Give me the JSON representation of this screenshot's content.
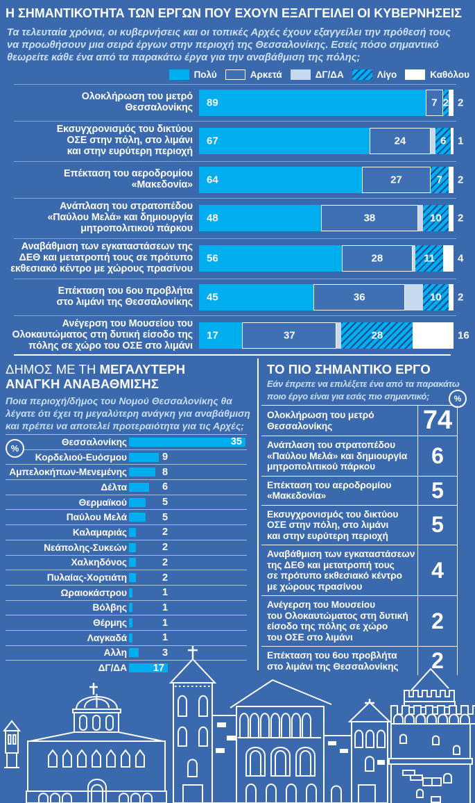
{
  "header": {
    "title": "Η ΣΗΜΑΝΤΙΚΟΤΗΤΑ ΤΩΝ ΕΡΓΩΝ ΠΟΥ ΕΧΟΥΝ ΕΞΑΓΓΕΙΛΕΙ ΟΙ ΚΥΒΕΡΝΗΣΕΙΣ",
    "intro": "Τα τελευταία χρόνια, οι κυβερνήσεις και οι τοπικές Αρχές έχουν εξαγγείλει την πρόθεσή τους\nνα προωθήσουν μια σειρά έργων στην περιοχή της Θεσσαλονίκης. Εσείς πόσο σημαντικό\nθεωρείτε κάθε ένα από τα παρακάτω έργα για την αναβάθμιση της πόλης;"
  },
  "legend": {
    "items": [
      {
        "label": "Πολύ",
        "swatch": "poly",
        "color": "#00aeef"
      },
      {
        "label": "Αρκετά",
        "swatch": "arketa",
        "color": "#4070b4"
      },
      {
        "label": "ΔΓ/ΔΑ",
        "swatch": "dgda",
        "color": "#c7d9ee"
      },
      {
        "label": "Λίγο",
        "swatch": "ligo",
        "color": "#00aeef hatched"
      },
      {
        "label": "Καθόλου",
        "swatch": "katholou",
        "color": "#ffffff"
      }
    ]
  },
  "colors": {
    "background": "#3a69ae",
    "cyan": "#00aeef",
    "arketa_blue": "#4070b4",
    "pale_blue": "#c7d9ee",
    "hatch_stripe": "#1d4b90",
    "white": "#ffffff"
  },
  "pct_symbol": "%",
  "chart_data": [
    {
      "id": "projects_importance",
      "type": "bar",
      "orientation": "horizontal",
      "stacked": true,
      "title": "Η ΣΗΜΑΝΤΙΚΟΤΗΤΑ ΤΩΝ ΕΡΓΩΝ ΠΟΥ ΕΧΟΥΝ ΕΞΑΓΓΕΙΛΕΙ ΟΙ ΚΥΒΕΡΝΗΣΕΙΣ",
      "xlim": [
        0,
        100
      ],
      "unit": "%",
      "legend_position": "top-right",
      "categories": [
        "Ολοκλήρωση του μετρό\nΘεσσαλονίκης",
        "Εκσυγχρονισμός του δικτύου\nΟΣΕ στην πόλη, στο λιμάνι\nκαι στην ευρύτερη περιοχή",
        "Επέκταση του αεροδρομίου\n«Μακεδονία»",
        "Ανάπλαση του στρατοπέδου\n«Παύλου Μελά» και δημιουργία\nμητροπολιτικού πάρκου",
        "Αναβάθμιση των εγκαταστάσεων της\nΔΕΘ και μετατροπή τους σε πρότυπο\nεκθεσιακό κέντρο με χώρους πρασίνου",
        "Επέκταση του 6ου προβλήτα\nστο λιμάνι της Θεσσαλονίκης",
        "Ανέγερση του Μουσείου του\nΟλοκαυτώματος στη δυτική είσοδο της\nπόλης σε χώρο του ΟΣΕ στο λιμάνι"
      ],
      "series": [
        {
          "name": "Πολύ",
          "values": [
            89,
            67,
            64,
            48,
            56,
            45,
            17
          ]
        },
        {
          "name": "Αρκετά",
          "values": [
            7,
            24,
            27,
            38,
            28,
            36,
            37
          ]
        },
        {
          "name": "ΔΓ/ΔΑ",
          "values": [
            0,
            2,
            0,
            2,
            1,
            7,
            2
          ]
        },
        {
          "name": "Λίγο",
          "values": [
            2,
            6,
            7,
            10,
            11,
            10,
            28
          ]
        },
        {
          "name": "Καθόλου",
          "values": [
            2,
            1,
            2,
            2,
            4,
            2,
            16
          ]
        }
      ]
    },
    {
      "id": "municipality_upgrade_need",
      "type": "bar",
      "orientation": "horizontal",
      "title": "ΔΗΜΟΣ ΜΕ ΤΗ ΜΕΓΑΛΥΤΕΡΗ ΑΝΑΓΚΗ ΑΝΑΒΑΘΜΙΣΗΣ",
      "subtitle": "Ποια περιοχή/δήμος του Νομού Θεσσαλονίκης θα λέγατε ότι έχει τη μεγαλύτερη ανάγκη για αναβάθμιση και πρέπει να αποτελεί προτεραιότητα για τις Αρχές;",
      "unit": "%",
      "categories": [
        "Θεσσαλονίκης",
        "Κορδελιού-Ευόσμου",
        "Αμπελοκήπων-Μενεμένης",
        "Δέλτα",
        "Θερμαϊκού",
        "Παύλου Μελά",
        "Καλαμαριάς",
        "Νεάπολης-Συκεών",
        "Χαλκηδόνος",
        "Πυλαίας-Χορτιάτη",
        "Ωραιοκάστρου",
        "Βόλβης",
        "Θέρμης",
        "Λαγκαδά",
        "Αλλη",
        "ΔΓ/ΔΑ"
      ],
      "values": [
        35,
        9,
        8,
        6,
        5,
        5,
        2,
        2,
        2,
        2,
        1,
        1,
        1,
        1,
        3,
        17
      ]
    },
    {
      "id": "most_important_project",
      "type": "table",
      "title": "ΤΟ ΠΙΟ ΣΗΜΑΝΤΙΚΟ ΕΡΓΟ",
      "subtitle": "Εάν έπρεπε να επιλέξετε ένα από τα παρακάτω ποιο έργο είναι για εσάς πιο σημαντικό;",
      "unit": "%",
      "rows": [
        {
          "label": "Ολοκλήρωση του μετρό\nΘεσσαλονίκης",
          "value": 74
        },
        {
          "label": "Ανάπλαση του στρατοπέδου\n«Παύλου Μελά» και δημιουργία\nμητροπολιτικού πάρκου",
          "value": 6
        },
        {
          "label": "Επέκταση του αεροδρομίου\n«Μακεδονία»",
          "value": 5
        },
        {
          "label": "Εκσυγχρονισμός του δικτύου\nΟΣΕ στην πόλη, στο λιμάνι\nκαι στην ευρύτερη περιοχή",
          "value": 5
        },
        {
          "label": "Αναβάθμιση των εγκαταστάσεων\nτης ΔΕΘ και μετατροπή τους\nσε πρότυπο εκθεσιακό κέντρο\nμε χώρους πρασίνου",
          "value": 4
        },
        {
          "label": "Ανέγερση του Μουσείου\nτου Ολοκαυτώματος στη δυτική\nείσοδο της πόλης σε χώρο\nτου ΟΣΕ στο λιμάνι",
          "value": 2
        },
        {
          "label": "Επέκταση του 6ου προβλήτα\nστο λιμάνι της Θεσσαλονίκης",
          "value": 2
        }
      ]
    }
  ],
  "sections": {
    "municipalities": {
      "title_light": "ΔΗΜΟΣ ΜΕ ΤΗ ",
      "title_strong": "ΜΕΓΑΛΥΤΕΡΗ\nΑΝΑΓΚΗ ΑΝΑΒΑΘΜΙΣΗΣ",
      "subtitle": "Ποια περιοχή/δήμος του Νομού Θεσσαλονίκης θα\nλέγατε ότι έχει τη μεγαλύτερη ανάγκη για αναβάθμιση\nκαι πρέπει να αποτελεί προτεραιότητα για τις Αρχές;"
    },
    "important_project": {
      "title": "ΤΟ ΠΙΟ ΣΗΜΑΝΤΙΚΟ ΕΡΓΟ",
      "subtitle": "Εάν έπρεπε να επιλέξετε ένα από τα παρακάτω\nποιο έργο είναι για εσάς πιο σημαντικό;"
    }
  }
}
